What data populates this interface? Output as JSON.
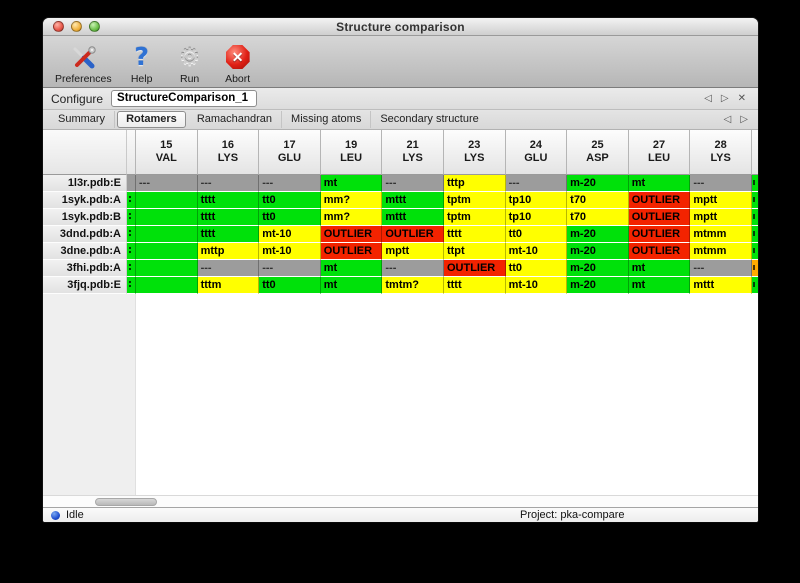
{
  "window": {
    "title": "Structure comparison"
  },
  "toolbar": {
    "items": [
      {
        "label": "Preferences",
        "icon": "tools-icon"
      },
      {
        "label": "Help",
        "icon": "help-icon"
      },
      {
        "label": "Run",
        "icon": "gear-icon"
      },
      {
        "label": "Abort",
        "icon": "abort-icon"
      }
    ]
  },
  "configure": {
    "label": "Configure",
    "value": "StructureComparison_1",
    "nav": {
      "prev": "◁",
      "next": "▷",
      "close": "✕"
    }
  },
  "tabs": {
    "items": [
      "Summary",
      "Rotamers",
      "Ramachandran",
      "Missing atoms",
      "Secondary structure"
    ],
    "selected": "Rotamers",
    "nav": {
      "prev": "◁",
      "next": "▷"
    }
  },
  "colors": {
    "green": "#00e10a",
    "yellow": "#ffff00",
    "red": "#f32300",
    "gray": "#9c9c9c",
    "orange": "#ffaa00"
  },
  "table": {
    "columns": [
      {
        "num": "15",
        "res": "VAL"
      },
      {
        "num": "16",
        "res": "LYS"
      },
      {
        "num": "17",
        "res": "GLU"
      },
      {
        "num": "19",
        "res": "LEU"
      },
      {
        "num": "21",
        "res": "LYS"
      },
      {
        "num": "23",
        "res": "LYS"
      },
      {
        "num": "24",
        "res": "GLU"
      },
      {
        "num": "25",
        "res": "ASP"
      },
      {
        "num": "27",
        "res": "LEU"
      },
      {
        "num": "28",
        "res": "LYS"
      }
    ],
    "rows": [
      {
        "label": "1l3r.pdb:E",
        "left_sliver": "gray",
        "right_sliver": "green",
        "cells": [
          {
            "text": "---",
            "color": "gray"
          },
          {
            "text": "---",
            "color": "gray"
          },
          {
            "text": "---",
            "color": "gray"
          },
          {
            "text": "mt",
            "color": "green"
          },
          {
            "text": "---",
            "color": "gray"
          },
          {
            "text": "tttp",
            "color": "yellow"
          },
          {
            "text": "---",
            "color": "gray"
          },
          {
            "text": "m-20",
            "color": "green"
          },
          {
            "text": "mt",
            "color": "green"
          },
          {
            "text": "---",
            "color": "gray"
          }
        ]
      },
      {
        "label": "1syk.pdb:A",
        "left_sliver": "green",
        "right_sliver": "green",
        "cells": [
          {
            "text": "",
            "color": "green"
          },
          {
            "text": "tttt",
            "color": "green"
          },
          {
            "text": "tt0",
            "color": "green"
          },
          {
            "text": "mm?",
            "color": "yellow"
          },
          {
            "text": "mttt",
            "color": "green"
          },
          {
            "text": "tptm",
            "color": "yellow"
          },
          {
            "text": "tp10",
            "color": "yellow"
          },
          {
            "text": "t70",
            "color": "yellow"
          },
          {
            "text": "OUTLIER",
            "color": "red"
          },
          {
            "text": "mptt",
            "color": "yellow"
          }
        ]
      },
      {
        "label": "1syk.pdb:B",
        "left_sliver": "green",
        "right_sliver": "green",
        "cells": [
          {
            "text": "",
            "color": "green"
          },
          {
            "text": "tttt",
            "color": "green"
          },
          {
            "text": "tt0",
            "color": "green"
          },
          {
            "text": "mm?",
            "color": "yellow"
          },
          {
            "text": "mttt",
            "color": "green"
          },
          {
            "text": "tptm",
            "color": "yellow"
          },
          {
            "text": "tp10",
            "color": "yellow"
          },
          {
            "text": "t70",
            "color": "yellow"
          },
          {
            "text": "OUTLIER",
            "color": "red"
          },
          {
            "text": "mptt",
            "color": "yellow"
          }
        ]
      },
      {
        "label": "3dnd.pdb:A",
        "left_sliver": "green",
        "right_sliver": "green",
        "cells": [
          {
            "text": "",
            "color": "green"
          },
          {
            "text": "tttt",
            "color": "green"
          },
          {
            "text": "mt-10",
            "color": "yellow"
          },
          {
            "text": "OUTLIER",
            "color": "red"
          },
          {
            "text": "OUTLIER",
            "color": "red"
          },
          {
            "text": "tttt",
            "color": "yellow"
          },
          {
            "text": "tt0",
            "color": "yellow"
          },
          {
            "text": "m-20",
            "color": "green"
          },
          {
            "text": "OUTLIER",
            "color": "red"
          },
          {
            "text": "mtmm",
            "color": "yellow"
          }
        ]
      },
      {
        "label": "3dne.pdb:A",
        "left_sliver": "green",
        "right_sliver": "green",
        "cells": [
          {
            "text": "",
            "color": "green"
          },
          {
            "text": "mttp",
            "color": "yellow"
          },
          {
            "text": "mt-10",
            "color": "yellow"
          },
          {
            "text": "OUTLIER",
            "color": "red"
          },
          {
            "text": "mptt",
            "color": "yellow"
          },
          {
            "text": "ttpt",
            "color": "yellow"
          },
          {
            "text": "mt-10",
            "color": "yellow"
          },
          {
            "text": "m-20",
            "color": "green"
          },
          {
            "text": "OUTLIER",
            "color": "red"
          },
          {
            "text": "mtmm",
            "color": "yellow"
          }
        ]
      },
      {
        "label": "3fhi.pdb:A",
        "left_sliver": "green",
        "right_sliver": "orange",
        "cells": [
          {
            "text": "",
            "color": "green"
          },
          {
            "text": "---",
            "color": "gray"
          },
          {
            "text": "---",
            "color": "gray"
          },
          {
            "text": "mt",
            "color": "green"
          },
          {
            "text": "---",
            "color": "gray"
          },
          {
            "text": "OUTLIER",
            "color": "red"
          },
          {
            "text": "tt0",
            "color": "yellow"
          },
          {
            "text": "m-20",
            "color": "green"
          },
          {
            "text": "mt",
            "color": "green"
          },
          {
            "text": "---",
            "color": "gray"
          }
        ]
      },
      {
        "label": "3fjq.pdb:E",
        "left_sliver": "green",
        "right_sliver": "green",
        "cells": [
          {
            "text": "",
            "color": "green"
          },
          {
            "text": "tttm",
            "color": "yellow"
          },
          {
            "text": "tt0",
            "color": "green"
          },
          {
            "text": "mt",
            "color": "green"
          },
          {
            "text": "tmtm?",
            "color": "yellow"
          },
          {
            "text": "tttt",
            "color": "yellow"
          },
          {
            "text": "mt-10",
            "color": "yellow"
          },
          {
            "text": "m-20",
            "color": "green"
          },
          {
            "text": "mt",
            "color": "green"
          },
          {
            "text": "mttt",
            "color": "yellow"
          }
        ]
      }
    ]
  },
  "statusbar": {
    "status": "Idle",
    "project": "Project: pka-compare"
  }
}
